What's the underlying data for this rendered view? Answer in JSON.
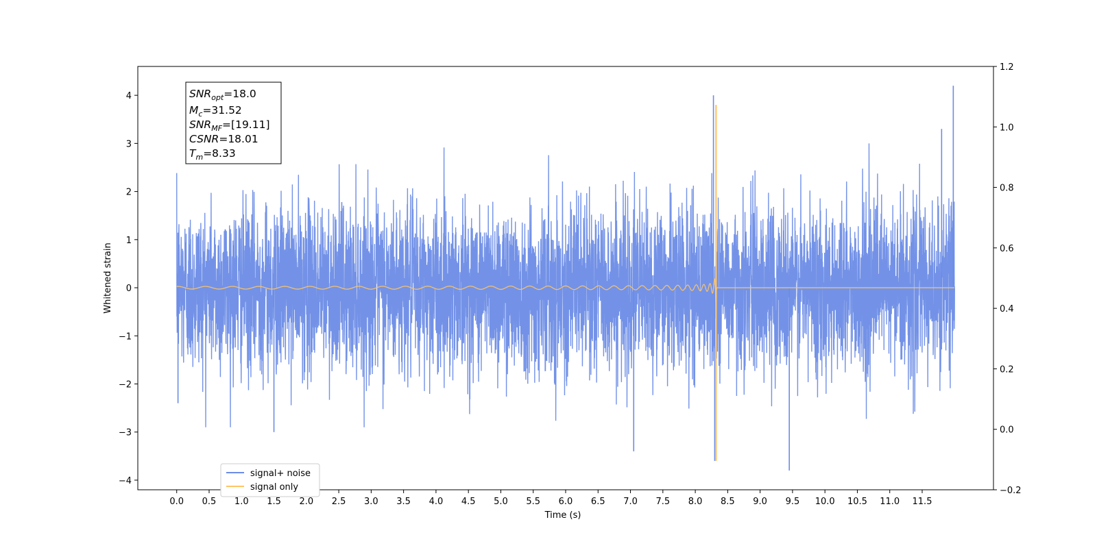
{
  "chart_data": {
    "type": "line",
    "xlabel": "Time (s)",
    "ylabel": "Whitened strain",
    "xlim": [
      -0.6,
      12.6
    ],
    "ylim": [
      -4.2,
      4.6
    ],
    "y2lim": [
      -0.2,
      1.2
    ],
    "x_ticks": [
      0.0,
      0.5,
      1.0,
      1.5,
      2.0,
      2.5,
      3.0,
      3.5,
      4.0,
      4.5,
      5.0,
      5.5,
      6.0,
      6.5,
      7.0,
      7.5,
      8.0,
      8.5,
      9.0,
      9.5,
      10.0,
      10.5,
      11.0,
      11.5
    ],
    "x_tick_labels": [
      "0.0",
      "0.5",
      "1.0",
      "1.5",
      "2.0",
      "2.5",
      "3.0",
      "3.5",
      "4.0",
      "4.5",
      "5.0",
      "5.5",
      "6.0",
      "6.5",
      "7.0",
      "7.5",
      "8.0",
      "8.5",
      "9.0",
      "9.5",
      "10.0",
      "10.5",
      "11.0",
      "11.5"
    ],
    "y_ticks": [
      4,
      3,
      2,
      1,
      0,
      -1,
      -2,
      -3,
      -4
    ],
    "y_tick_labels": [
      "4",
      "3",
      "2",
      "1",
      "0",
      "−1",
      "−2",
      "−3",
      "−4"
    ],
    "y2_ticks": [
      1.2,
      1.0,
      0.8,
      0.6,
      0.4,
      0.2,
      0.0,
      -0.2
    ],
    "y2_tick_labels": [
      "1.2",
      "1.0",
      "0.8",
      "0.6",
      "0.4",
      "0.2",
      "0.0",
      "−0.2"
    ],
    "grid": false,
    "legend_position": "lower-left",
    "series": [
      {
        "name": "signal+ noise",
        "color": "#6b8ce6",
        "description": "whitened noise, samples approx. within ±2.5 with occasional spikes",
        "t_start": 0.0,
        "t_end": 12.0,
        "noise_sigma": 0.85,
        "notable_points": [
          {
            "x": 0.02,
            "y": -2.4
          },
          {
            "x": 1.5,
            "y": -3.0
          },
          {
            "x": 7.05,
            "y": -3.4
          },
          {
            "x": 8.28,
            "y": 4.0
          },
          {
            "x": 8.3,
            "y": -3.6
          },
          {
            "x": 9.45,
            "y": -3.8
          },
          {
            "x": 11.8,
            "y": 3.3
          },
          {
            "x": 11.98,
            "y": 4.2
          }
        ]
      },
      {
        "name": "signal only",
        "color": "#ffc466",
        "description": "chirp waveform, amplitude grows toward merger",
        "t_start": 0.0,
        "t_merger": 8.33,
        "t_end": 12.0,
        "amplitude_start": 0.03,
        "amplitude_peak": 3.8,
        "peak_min": -3.6,
        "chirp_mass": 31.52
      }
    ],
    "annotation": {
      "lines": [
        {
          "symbol": "SNR",
          "sub": "opt",
          "value": "=18.0"
        },
        {
          "symbol": "M",
          "sub": "c",
          "value": "=31.52"
        },
        {
          "symbol": "SNR",
          "sub": "MF",
          "value": "=[19.11]"
        },
        {
          "symbol": "CSNR",
          "sub": "",
          "value": "=18.01"
        },
        {
          "symbol": "T",
          "sub": "m",
          "value": "=8.33"
        }
      ]
    }
  }
}
